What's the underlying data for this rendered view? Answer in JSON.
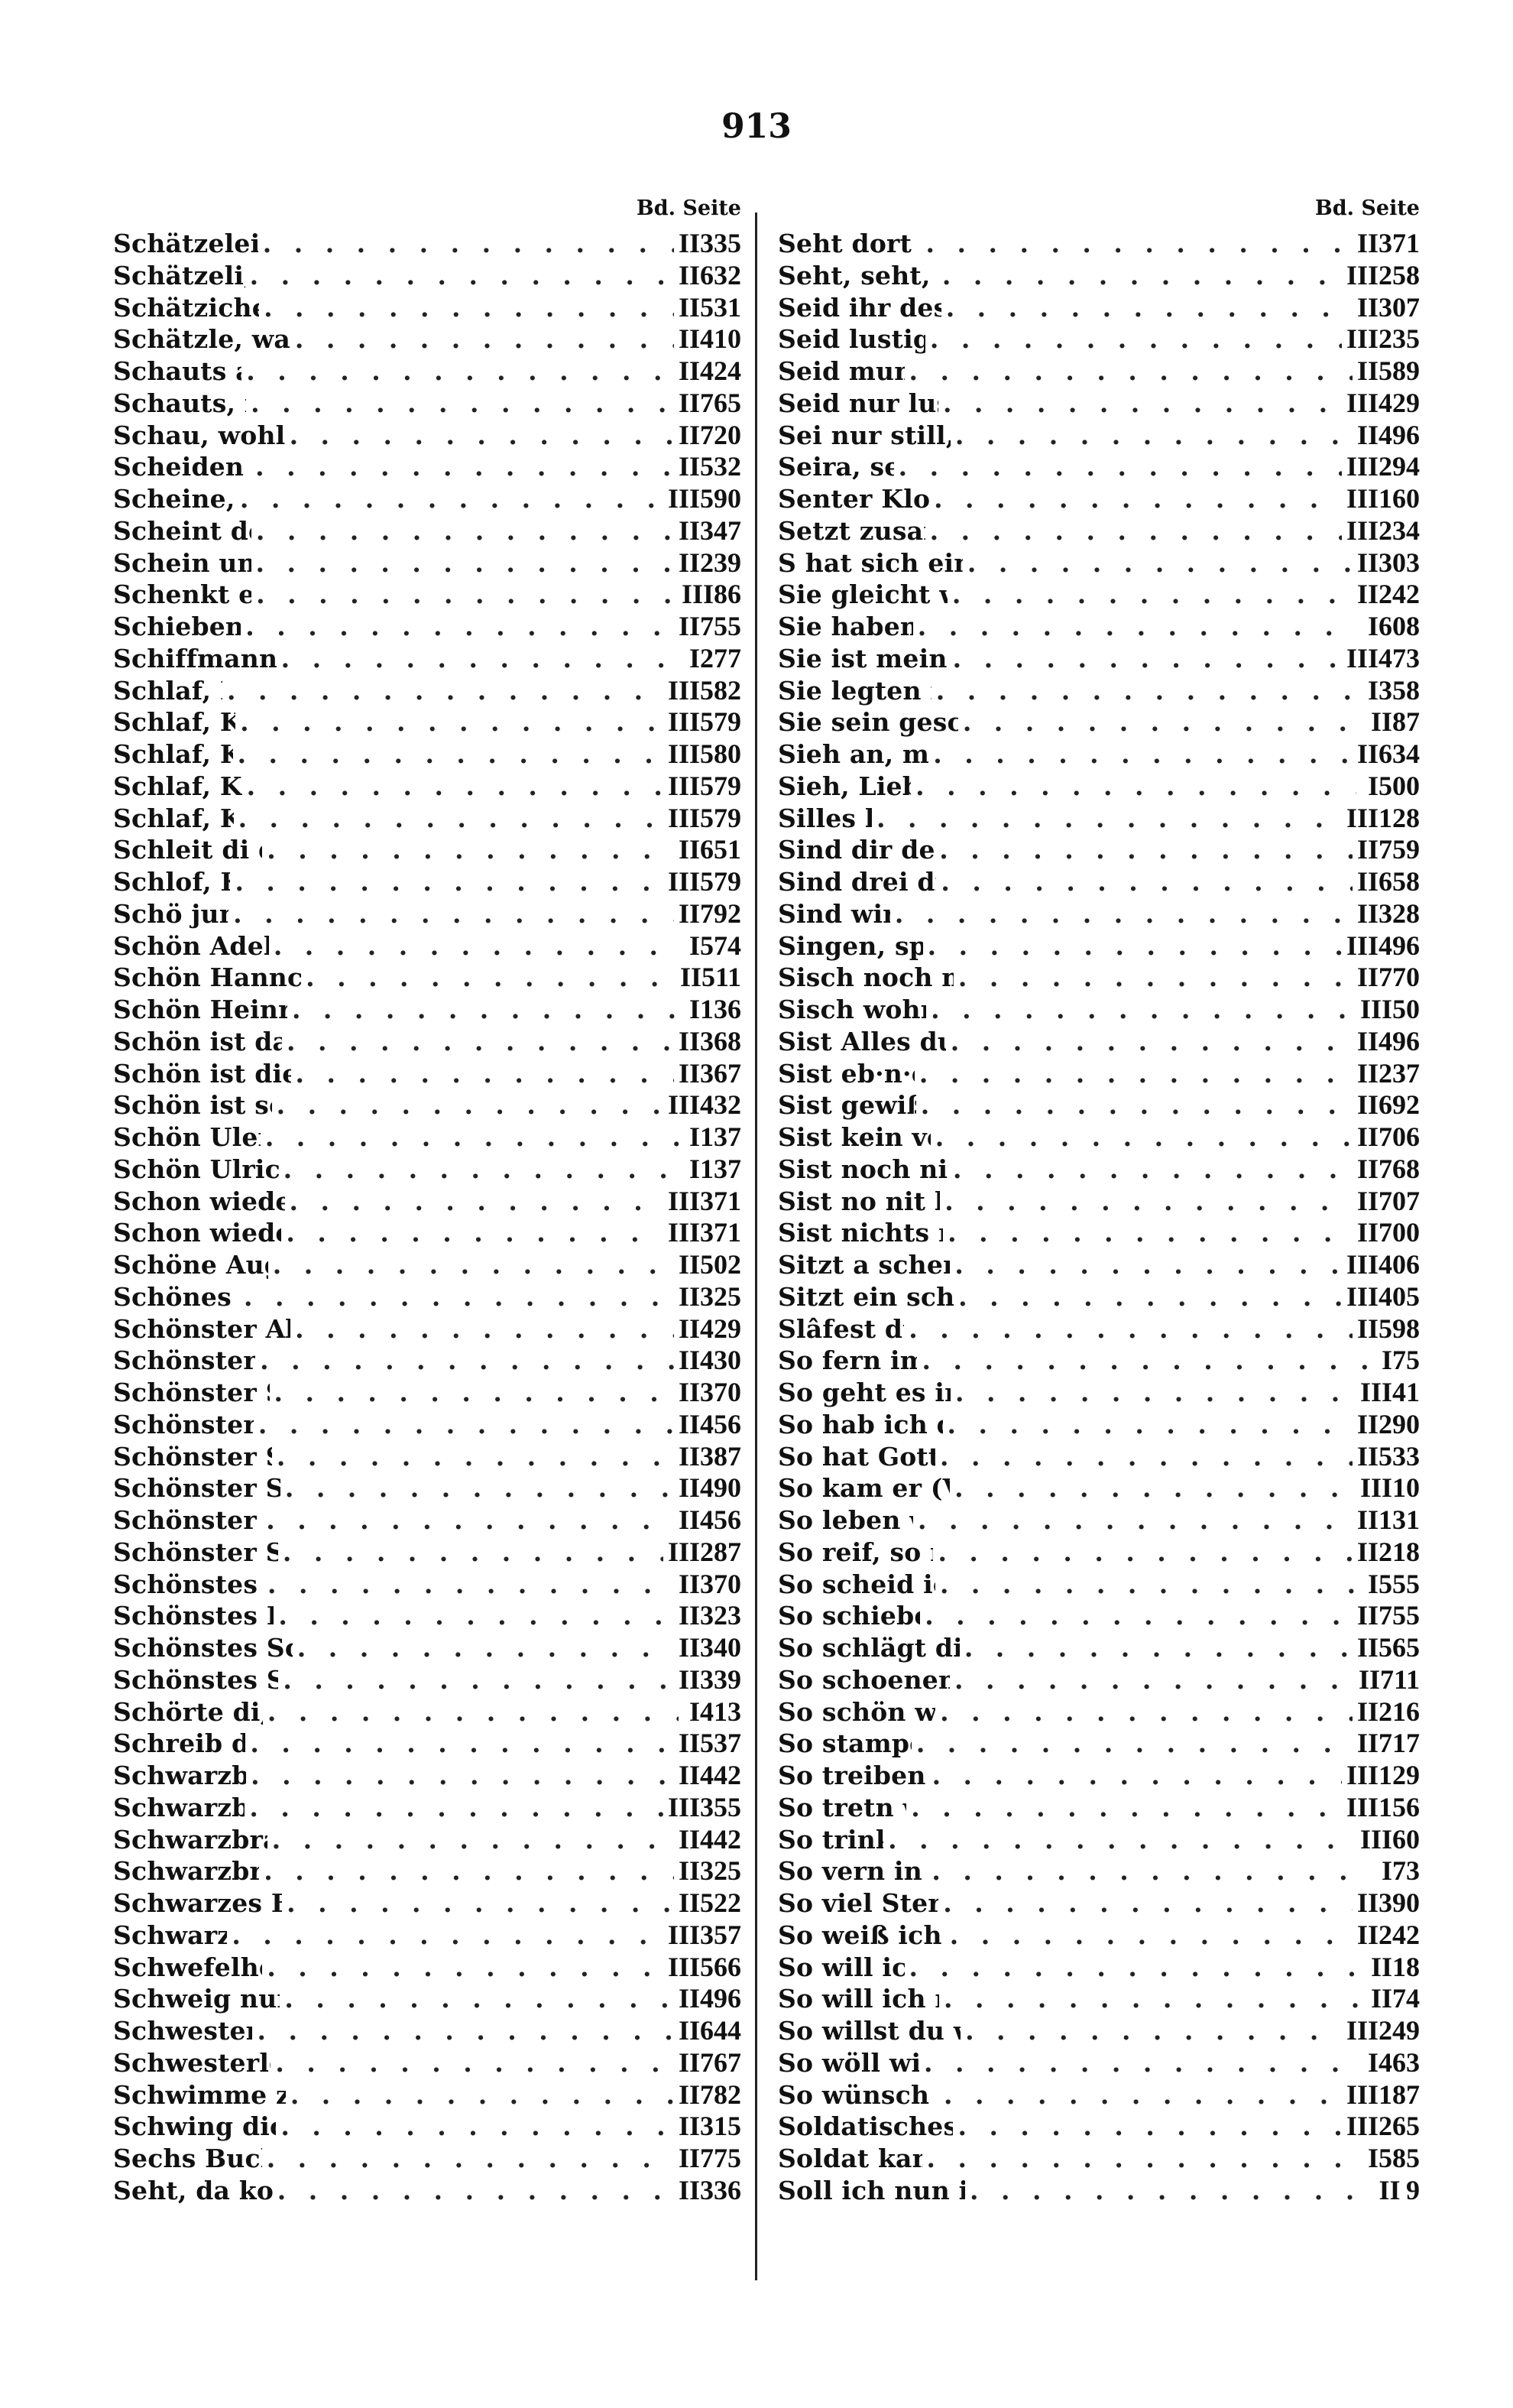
{
  "page_number": "913",
  "column_header": "Bd. Seite",
  "left_entries": [
    [
      "Schätzelein, es kränket mich",
      "II",
      "335"
    ],
    [
      "Schätzeli, was traurist du",
      "II",
      "632"
    ],
    [
      "Schätzichen, was machest du",
      "II",
      "531"
    ],
    [
      "Schätzle, was hab ich dir Leids gethan",
      "II",
      "410"
    ],
    [
      "Schauts außi, wies regnt",
      "II",
      "424"
    ],
    [
      "Schauts, ihr lieben Leutel",
      "II",
      "765"
    ],
    [
      "Schau, wohl tritt der Hanslein daher",
      "II",
      "720"
    ],
    [
      "Scheiden ist ein harte Pein",
      "II",
      "532"
    ],
    [
      "Scheine, scheine Sunne",
      "III",
      "590"
    ],
    [
      "Scheint der Mond so schön",
      "II",
      "347"
    ],
    [
      "Schein uns, du liebe Sonne",
      "II",
      "239"
    ],
    [
      "Schenkt ein den Wein, laßt",
      "III",
      "86"
    ],
    [
      "Schieben wir den Wagen",
      "II",
      "755"
    ],
    [
      "Schiffmann, latt Schiffken sinken",
      "I",
      "277"
    ],
    [
      "Schlaf, Büble, schlaf",
      "III",
      "582"
    ],
    [
      "Schlaf, Kindchen, balde",
      "III",
      "579"
    ],
    [
      "Schlaf, Kindchen, süße",
      "III",
      "580"
    ],
    [
      "Schlaf, Kindeken, schlafe",
      "III",
      "579"
    ],
    [
      "Schlaf, Kindlein, schlaf",
      "III",
      "579"
    ],
    [
      "Schleit di doch de lütte Düker",
      "II",
      "651"
    ],
    [
      "Schlof, Kindele, schlof",
      "III",
      "579"
    ],
    [
      "Schö jung is mai Blut",
      "II",
      "792"
    ],
    [
      "Schön Adelheid beim Feuer saß",
      "I",
      "574"
    ],
    [
      "Schön Hannchen ging am Ufer der Donau",
      "II",
      "511"
    ],
    [
      "Schön Heinrich wollt spazieren gehn",
      "I",
      "136"
    ],
    [
      "Schön ist das Leben bei frohen Sch.",
      "II",
      "368"
    ],
    [
      "Schön ist die Jugend bei frohen Zeiten",
      "II",
      "367"
    ],
    [
      "Schön ist so weit u. breit die Welt",
      "III",
      "432"
    ],
    [
      "Schön Ulerich und Hanselein",
      "I",
      "137"
    ],
    [
      "Schön Ulrich wollt spazieren gehn",
      "I",
      "137"
    ],
    [
      "Schon wieder tönts vom Schachte her",
      "III",
      "371"
    ],
    [
      "Schon wieder tönt vom Schachte her",
      "III",
      "371"
    ],
    [
      "Schöne Augen, schöne Strahlen",
      "II",
      "502"
    ],
    [
      "Schönes Herzchen mein",
      "II",
      "325"
    ],
    [
      "Schönster Abendstern, o wie leuchtest",
      "II",
      "429"
    ],
    [
      "Schönster Obedstern! ei wie",
      "II",
      "430"
    ],
    [
      "Schönster Schatz auf dieser Erd",
      "II",
      "370"
    ],
    [
      "Schönster Schatz auf Erden",
      "II",
      "456"
    ],
    [
      "Schönster Schatz, m. Augentrost",
      "II",
      "387"
    ],
    [
      "Schönster Schatz, mein Augentrost",
      "II",
      "490"
    ],
    [
      "Schönster Schatz, mein Engel",
      "II",
      "456"
    ],
    [
      "Schönster Schatz, thu mir erlauben",
      "III",
      "287"
    ],
    [
      "Schönstes Kind auf dieser Erd",
      "II",
      "370"
    ],
    [
      "Schönstes Kind, zu deinen Füßen",
      "II",
      "323"
    ],
    [
      "Schönstes Schätzchen, liebes Mädchen",
      "II",
      "340"
    ],
    [
      "Schönstes Schätzchen, wackres M.",
      "II",
      "339"
    ],
    [
      "Schörte di, Gretlin, schörte di",
      "I",
      "413"
    ],
    [
      "Schreib du an jenem Orte",
      "II",
      "537"
    ],
    [
      "Schwarzbraunes Äugelein",
      "II",
      "442"
    ],
    [
      "Schwarzbraunes Mädchen",
      "III",
      "355"
    ],
    [
      "Schwarzbraunes Mägdelein, wo",
      "II",
      "442"
    ],
    [
      "Schwarzbraun sind Haselnüß",
      "II",
      "325"
    ],
    [
      "Schwarzes Band, du mußt vergehen",
      "II",
      "522"
    ],
    [
      "Schwarz ist die Nacht",
      "III",
      "357"
    ],
    [
      "Schwefelhelzle, Schwefelhelzle",
      "III",
      "566"
    ],
    [
      "Schweig nur still, hab lang geschw.",
      "II",
      "496"
    ],
    [
      "Schwester, den mag ich net",
      "II",
      "644"
    ],
    [
      "Schwesterlein, :|: wann gehn wir",
      "II",
      "767"
    ],
    [
      "Schwimme zwei Fischle im Bodensee",
      "II",
      "782"
    ],
    [
      "Schwing dich auf, Frau Nachtigall",
      "II",
      "315"
    ],
    [
      "Sechs Buckel heut hawe tanzt",
      "II",
      "775"
    ],
    [
      "Seht, da kommt m. Jungchen her",
      "II",
      "336"
    ]
  ],
  "right_entries": [
    [
      "Seht dort an jenes Endchen",
      "II",
      "371"
    ],
    [
      "Seht, seht, ihr deutschen Brüder",
      "III",
      "258"
    ],
    [
      "Seid ihr des Fischers Töchterlein",
      "II",
      "307"
    ],
    [
      "Seid lustig, ihr Brüder, lustig",
      "III",
      "235"
    ],
    [
      "Seid munter u. fröhlich",
      "II",
      "589"
    ],
    [
      "Seid nur lustig u. fröhlich, ihr H.",
      "III",
      "429"
    ],
    [
      "Sei nur still, hast lang geschwiegen",
      "II",
      "496"
    ],
    [
      "Seira, seira, seirassa!",
      "III",
      "294"
    ],
    [
      "Senter Klos es 'ne brave Mann",
      "III",
      "160"
    ],
    [
      "Setzt zusammen die Gewehre",
      "III",
      "234"
    ],
    [
      "S hat sich ein Kuckuk zu Tod geschrien",
      "II",
      "303"
    ],
    [
      "Sie gleicht wohl einem Rosenstock",
      "II",
      "242"
    ],
    [
      "Sie haben mich geheißen",
      "I",
      "608"
    ],
    [
      "Sie ist mein Buhl, ich bin ihr Gauch",
      "III",
      "473"
    ],
    [
      "Sie legten ihn auf einen Tisch",
      "I",
      "358"
    ],
    [
      "Sie sein geschickt zu Sturm u. Streit",
      "II",
      "87"
    ],
    [
      "Sieh an, mein schönstes Kind",
      "II",
      "634"
    ],
    [
      "Sieh, Liebe, laß mich ein",
      "I",
      "500"
    ],
    [
      "Silles kale Erbes",
      "III",
      "128"
    ],
    [
      "Sind dir denn die Hosenbänder",
      "II",
      "759"
    ],
    [
      "Sind drei draußen, Frau Mutter",
      "II",
      "658"
    ],
    [
      "Sind wir geschieden",
      "II",
      "328"
    ],
    [
      "Singen, springen, lustig sein",
      "III",
      "496"
    ],
    [
      "Sisch noch nit lang, daß gregnet hat",
      "II",
      "770"
    ],
    [
      "Sisch wohr, sisch wohr, i will",
      "III",
      "50"
    ],
    [
      "Sist Alles dunkel, 's ist Alles trübe",
      "II",
      "496"
    ],
    [
      "Sist eb·n·e Mönch uf Erde",
      "II",
      "237"
    ],
    [
      "Sist gewiß u. kein Gedicht",
      "II",
      "692"
    ],
    [
      "Sist kein verdrießlichers Lebe",
      "II",
      "706"
    ],
    [
      "Sist noch nit lang, daß gregnet hat",
      "II",
      "768"
    ],
    [
      "Sist no nit lang, daß gregnet hat",
      "II",
      "707"
    ],
    [
      "Sist nichts mit den alten Weibern",
      "II",
      "700"
    ],
    [
      "Sitzt a schens Vegerl afm Dannebam",
      "III",
      "406"
    ],
    [
      "Sitzt ein schöns Vögel im Tannenwald",
      "III",
      "405"
    ],
    [
      "Slâfest du, friedel ziere",
      "II",
      "598"
    ],
    [
      "So fern im Frankenreiche",
      "I",
      "75"
    ],
    [
      "So geht es in Schnützelputz Häusel",
      "III",
      "41"
    ],
    [
      "So hab ich denn die ganze Woche",
      "II",
      "290"
    ],
    [
      "So hat Gott die Welt erschaffen",
      "II",
      "533"
    ],
    [
      "So kam er (Vonved) zu der 3. Schar",
      "III",
      "10"
    ],
    [
      "So leben wir, so leben wir",
      "II",
      "131"
    ],
    [
      "So reif, so reif, du kühler Thau",
      "II",
      "218"
    ],
    [
      "So scheid ich nun mit Schmerz",
      "I",
      "555"
    ],
    [
      "So schieben wir den Wagen",
      "II",
      "755"
    ],
    [
      "So schlägt die bittre Trennungsstunde",
      "II",
      "565"
    ],
    [
      "So schoenen wir den anger nie ges.",
      "II",
      "711"
    ],
    [
      "So schön wie eine Rose, die auf",
      "II",
      "216"
    ],
    [
      "So stampen wir die Hirse",
      "II",
      "717"
    ],
    [
      "So treiben wir den Winter aus",
      "III",
      "129"
    ],
    [
      "So tretn wir nun herfüre",
      "III",
      "156"
    ],
    [
      "So trinken wir alle",
      "III",
      "60"
    ],
    [
      "So vern in jenen Frankriken",
      "I",
      "73"
    ],
    [
      "So viel Stern am Himmel stehen",
      "II",
      "390"
    ],
    [
      "So weiß ich eins, das mich erfreut",
      "II",
      "242"
    ],
    [
      "So will ich aber singen",
      "II",
      "18"
    ],
    [
      "So will ich mirs nit grausen lan",
      "II",
      "74"
    ],
    [
      "So willst du wieder einsam m. verlassen",
      "III",
      "249"
    ],
    [
      "So wöll wirs aber heben an",
      "I",
      "463"
    ],
    [
      "So wünsch ich ihr ein gute Nacht",
      "III",
      "187"
    ],
    [
      "Soldatisches Leben ein harter Schluß",
      "III",
      "265"
    ],
    [
      "Soldat kam aus dem Kriege",
      "I",
      "585"
    ],
    [
      "Soll ich nun in Gottesfronden Händen",
      "II",
      "9"
    ]
  ]
}
